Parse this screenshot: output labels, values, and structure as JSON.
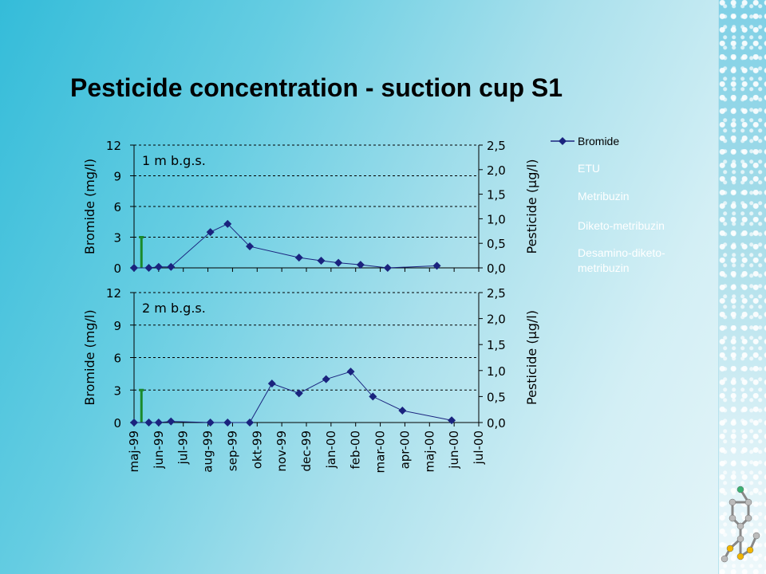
{
  "title": "Pesticide concentration - suction cup S1",
  "colors": {
    "bromide": "#1a237e",
    "pulse": "#1a8a2a",
    "gridline": "#000000"
  },
  "chart_data": [
    {
      "type": "line",
      "panel_label": "1 m b.g.s.",
      "ylabel": "Bromide (mg/l)",
      "y2label": "Pesticide (µg/l)",
      "ylim": [
        0,
        12
      ],
      "yticks": [
        "0",
        "3",
        "6",
        "9",
        "12"
      ],
      "y2lim": [
        0,
        2.5
      ],
      "y2ticks": [
        "0,0",
        "0,5",
        "1,0",
        "1,5",
        "2,0",
        "2,5"
      ],
      "grid": "horizontal dashed",
      "x_range_months": [
        0,
        14
      ],
      "series": [
        {
          "name": "Bromide",
          "x": [
            0,
            0.6,
            1.0,
            1.5,
            3.1,
            3.8,
            4.7,
            6.7,
            7.6,
            8.3,
            9.2,
            10.3,
            12.3
          ],
          "values": [
            0,
            0,
            0.1,
            0.1,
            3.5,
            4.3,
            2.1,
            1.0,
            0.7,
            0.5,
            0.3,
            0,
            0.2
          ]
        }
      ],
      "pulse": {
        "x": 0.3,
        "value": 3.0
      }
    },
    {
      "type": "line",
      "panel_label": "2 m b.g.s.",
      "ylabel": "Bromide (mg/l)",
      "y2label": "Pesticide (µg/l)",
      "ylim": [
        0,
        12
      ],
      "yticks": [
        "0",
        "3",
        "6",
        "9",
        "12"
      ],
      "y2lim": [
        0,
        2.5
      ],
      "y2ticks": [
        "0,0",
        "0,5",
        "1,0",
        "1,5",
        "2,0",
        "2,5"
      ],
      "grid": "horizontal dashed",
      "x_range_months": [
        0,
        14
      ],
      "xticks": [
        "maj-99",
        "jun-99",
        "jul-99",
        "aug-99",
        "sep-99",
        "okt-99",
        "nov-99",
        "dec-99",
        "jan-00",
        "feb-00",
        "mar-00",
        "apr-00",
        "maj-00",
        "jun-00",
        "jul-00"
      ],
      "series": [
        {
          "name": "Bromide",
          "x": [
            0,
            0.6,
            1.0,
            1.5,
            3.1,
            3.8,
            4.7,
            5.6,
            6.7,
            7.8,
            8.8,
            9.7,
            10.9,
            12.9
          ],
          "values": [
            0,
            0,
            0,
            0.1,
            0,
            0,
            0,
            3.6,
            2.7,
            4.0,
            4.7,
            2.4,
            1.1,
            0.2
          ]
        }
      ],
      "pulse": {
        "x": 0.3,
        "value": 3.0
      }
    }
  ],
  "legend": [
    {
      "label": "Bromide",
      "marker": "diamond-line"
    },
    {
      "label": "ETU",
      "marker": "none"
    },
    {
      "label": "Metribuzin",
      "marker": "none"
    },
    {
      "label": "Diketo-metribuzin",
      "marker": "none"
    },
    {
      "label": "Desamino-diketo-",
      "marker": "none"
    },
    {
      "label": "metribuzin",
      "marker": "none"
    }
  ]
}
